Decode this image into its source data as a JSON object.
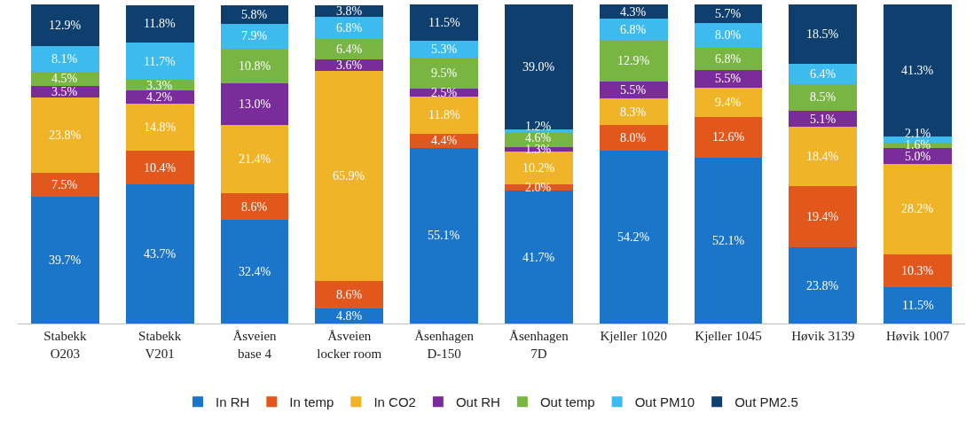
{
  "chart_data": {
    "type": "bar",
    "stacked": true,
    "legend": "bottom",
    "categories": [
      "Stabekk\nO203",
      "Stabekk\nV201",
      "Åsveien\nbase 4",
      "Åsveien\nlocker room",
      "Åsenhagen\nD-150",
      "Åsenhagen\n7D",
      "Kjeller 1020",
      "Kjeller 1045",
      "Høvik 3139",
      "Høvik 1007"
    ],
    "series": [
      {
        "name": "In RH",
        "color": "#1b75c8",
        "values": [
          39.7,
          43.7,
          32.4,
          4.8,
          55.1,
          41.7,
          54.2,
          52.1,
          23.8,
          11.5
        ],
        "value_labels": [
          "39.7%",
          "43.7%",
          "32.4%",
          "4.8%",
          "55.1%",
          "41.7%",
          "54.2%",
          "52.1%",
          "23.8%",
          "11.5%"
        ]
      },
      {
        "name": "In temp",
        "color": "#e2571c",
        "values": [
          7.5,
          10.4,
          8.6,
          8.6,
          4.4,
          2.0,
          8.0,
          12.6,
          19.4,
          10.3
        ],
        "value_labels": [
          "7.5%",
          "10.4%",
          "8.6%",
          "8.6%",
          "4.4%",
          "2.0%",
          "8.0%",
          "12.6%",
          "19.4%",
          "10.3%"
        ]
      },
      {
        "name": "In CO2",
        "color": "#f0b429",
        "values": [
          23.8,
          14.8,
          21.4,
          65.9,
          11.8,
          10.2,
          8.3,
          9.4,
          18.4,
          28.2
        ],
        "value_labels": [
          "23.8%",
          "14.8%",
          "21.4%",
          "65.9%",
          "11.8%",
          "10.2%",
          "8.3%",
          "9.4%",
          "18.4%",
          "28.2%"
        ]
      },
      {
        "name": "Out RH",
        "color": "#7b2c9b",
        "values": [
          3.5,
          4.2,
          13.0,
          3.6,
          2.5,
          1.3,
          5.5,
          5.5,
          5.1,
          5.0
        ],
        "value_labels": [
          "3.5%",
          "4.2%",
          "13.0%",
          "3.6%",
          "2.5%",
          "1.3%",
          "5.5%",
          "5.5%",
          "5.1%",
          "5.0%"
        ]
      },
      {
        "name": "Out temp",
        "color": "#78b543",
        "values": [
          4.5,
          3.3,
          10.8,
          6.4,
          9.5,
          4.6,
          12.9,
          6.8,
          8.5,
          1.6
        ],
        "value_labels": [
          "4.5%",
          "3.3%",
          "10.8%",
          "6.4%",
          "9.5%",
          "4.6%",
          "12.9%",
          "6.8%",
          "8.5%",
          "1.6%"
        ]
      },
      {
        "name": "Out PM10",
        "color": "#3dbbef",
        "values": [
          8.1,
          11.7,
          7.9,
          6.8,
          5.3,
          1.2,
          6.8,
          8.0,
          6.4,
          2.1
        ],
        "value_labels": [
          "8.1%",
          "11.7%",
          "7.9%",
          "6.8%",
          "5.3%",
          "1.2%",
          "6.8%",
          "8.0%",
          "6.4%",
          "2.1%"
        ]
      },
      {
        "name": "Out PM2.5",
        "color": "#0e3f6e",
        "values": [
          12.9,
          11.8,
          5.8,
          3.8,
          11.5,
          39.0,
          4.3,
          5.7,
          18.5,
          41.3
        ],
        "value_labels": [
          "12.9%",
          "11.8%",
          "5.8%",
          "3.8%",
          "11.5%",
          "39.0%",
          "4.3%",
          "5.7%",
          "18.5%",
          "41.3%"
        ]
      }
    ]
  }
}
